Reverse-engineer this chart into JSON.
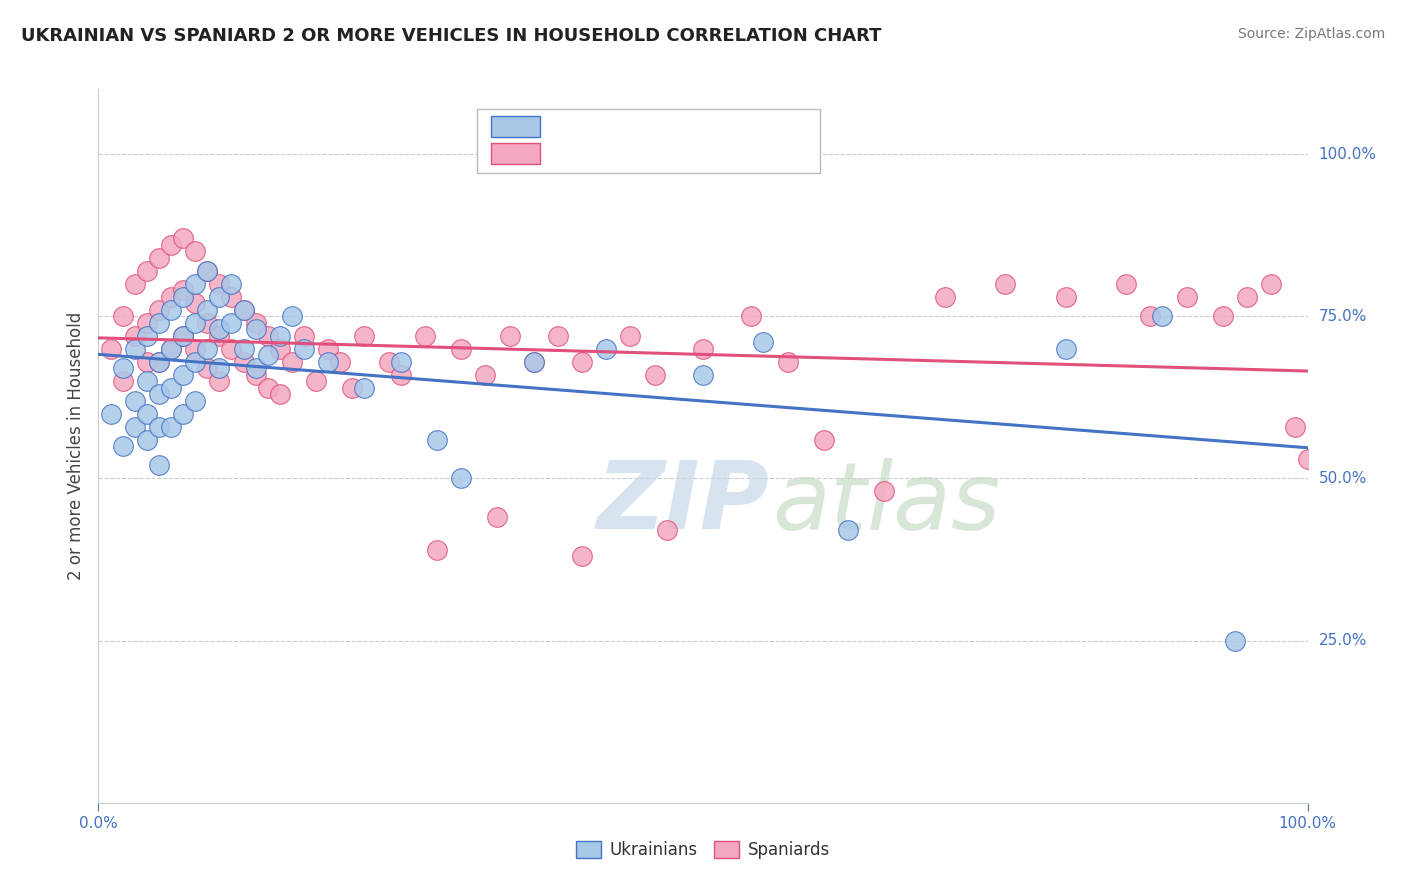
{
  "title": "UKRAINIAN VS SPANIARD 2 OR MORE VEHICLES IN HOUSEHOLD CORRELATION CHART",
  "source": "Source: ZipAtlas.com",
  "ylabel": "2 or more Vehicles in Household",
  "watermark_zip": "ZIP",
  "watermark_atlas": "atlas",
  "xlim": [
    0.0,
    1.0
  ],
  "ylim": [
    0.0,
    1.1
  ],
  "y_tick_values": [
    0.25,
    0.5,
    0.75,
    1.0
  ],
  "y_tick_labels": [
    "25.0%",
    "50.0%",
    "75.0%",
    "100.0%"
  ],
  "color_ukrainian": "#a8c8e8",
  "color_spaniard": "#f4a8c0",
  "line_color_ukrainian": "#4472c4",
  "line_color_spaniard": "#e0507a",
  "title_color": "#222222",
  "source_color": "#777777",
  "grid_color": "#cccccc",
  "background_color": "#ffffff",
  "ukrainians_x": [
    0.01,
    0.02,
    0.02,
    0.03,
    0.03,
    0.03,
    0.04,
    0.04,
    0.04,
    0.04,
    0.05,
    0.05,
    0.05,
    0.05,
    0.05,
    0.06,
    0.06,
    0.06,
    0.06,
    0.07,
    0.07,
    0.07,
    0.07,
    0.08,
    0.08,
    0.08,
    0.08,
    0.09,
    0.09,
    0.09,
    0.1,
    0.1,
    0.1,
    0.11,
    0.11,
    0.12,
    0.12,
    0.13,
    0.13,
    0.14,
    0.15,
    0.16,
    0.17,
    0.19,
    0.22,
    0.25,
    0.28,
    0.3,
    0.36,
    0.42,
    0.5,
    0.55,
    0.62,
    0.8,
    0.88,
    0.94
  ],
  "ukrainians_y": [
    0.6,
    0.55,
    0.67,
    0.62,
    0.7,
    0.58,
    0.65,
    0.72,
    0.6,
    0.56,
    0.68,
    0.74,
    0.63,
    0.58,
    0.52,
    0.7,
    0.76,
    0.64,
    0.58,
    0.72,
    0.78,
    0.66,
    0.6,
    0.74,
    0.8,
    0.68,
    0.62,
    0.76,
    0.82,
    0.7,
    0.78,
    0.73,
    0.67,
    0.8,
    0.74,
    0.76,
    0.7,
    0.73,
    0.67,
    0.69,
    0.72,
    0.75,
    0.7,
    0.68,
    0.64,
    0.68,
    0.56,
    0.5,
    0.68,
    0.7,
    0.66,
    0.71,
    0.42,
    0.7,
    0.75,
    0.25
  ],
  "spaniards_x": [
    0.01,
    0.02,
    0.02,
    0.03,
    0.03,
    0.04,
    0.04,
    0.04,
    0.05,
    0.05,
    0.05,
    0.06,
    0.06,
    0.06,
    0.07,
    0.07,
    0.07,
    0.08,
    0.08,
    0.08,
    0.09,
    0.09,
    0.09,
    0.1,
    0.1,
    0.1,
    0.11,
    0.11,
    0.12,
    0.12,
    0.13,
    0.13,
    0.14,
    0.14,
    0.15,
    0.15,
    0.16,
    0.17,
    0.18,
    0.19,
    0.2,
    0.21,
    0.22,
    0.24,
    0.25,
    0.27,
    0.3,
    0.32,
    0.34,
    0.36,
    0.38,
    0.4,
    0.44,
    0.46,
    0.5,
    0.54,
    0.57,
    0.6,
    0.65,
    0.7,
    0.75,
    0.8,
    0.85,
    0.87,
    0.9,
    0.93,
    0.95,
    0.97,
    0.99,
    1.0,
    0.28,
    0.33,
    0.4,
    0.47
  ],
  "spaniards_y": [
    0.7,
    0.75,
    0.65,
    0.8,
    0.72,
    0.82,
    0.74,
    0.68,
    0.84,
    0.76,
    0.68,
    0.86,
    0.78,
    0.7,
    0.87,
    0.79,
    0.72,
    0.85,
    0.77,
    0.7,
    0.82,
    0.74,
    0.67,
    0.8,
    0.72,
    0.65,
    0.78,
    0.7,
    0.76,
    0.68,
    0.74,
    0.66,
    0.72,
    0.64,
    0.7,
    0.63,
    0.68,
    0.72,
    0.65,
    0.7,
    0.68,
    0.64,
    0.72,
    0.68,
    0.66,
    0.72,
    0.7,
    0.66,
    0.72,
    0.68,
    0.72,
    0.68,
    0.72,
    0.66,
    0.7,
    0.75,
    0.68,
    0.56,
    0.48,
    0.78,
    0.8,
    0.78,
    0.8,
    0.75,
    0.78,
    0.75,
    0.78,
    0.8,
    0.58,
    0.53,
    0.39,
    0.44,
    0.38,
    0.42
  ]
}
